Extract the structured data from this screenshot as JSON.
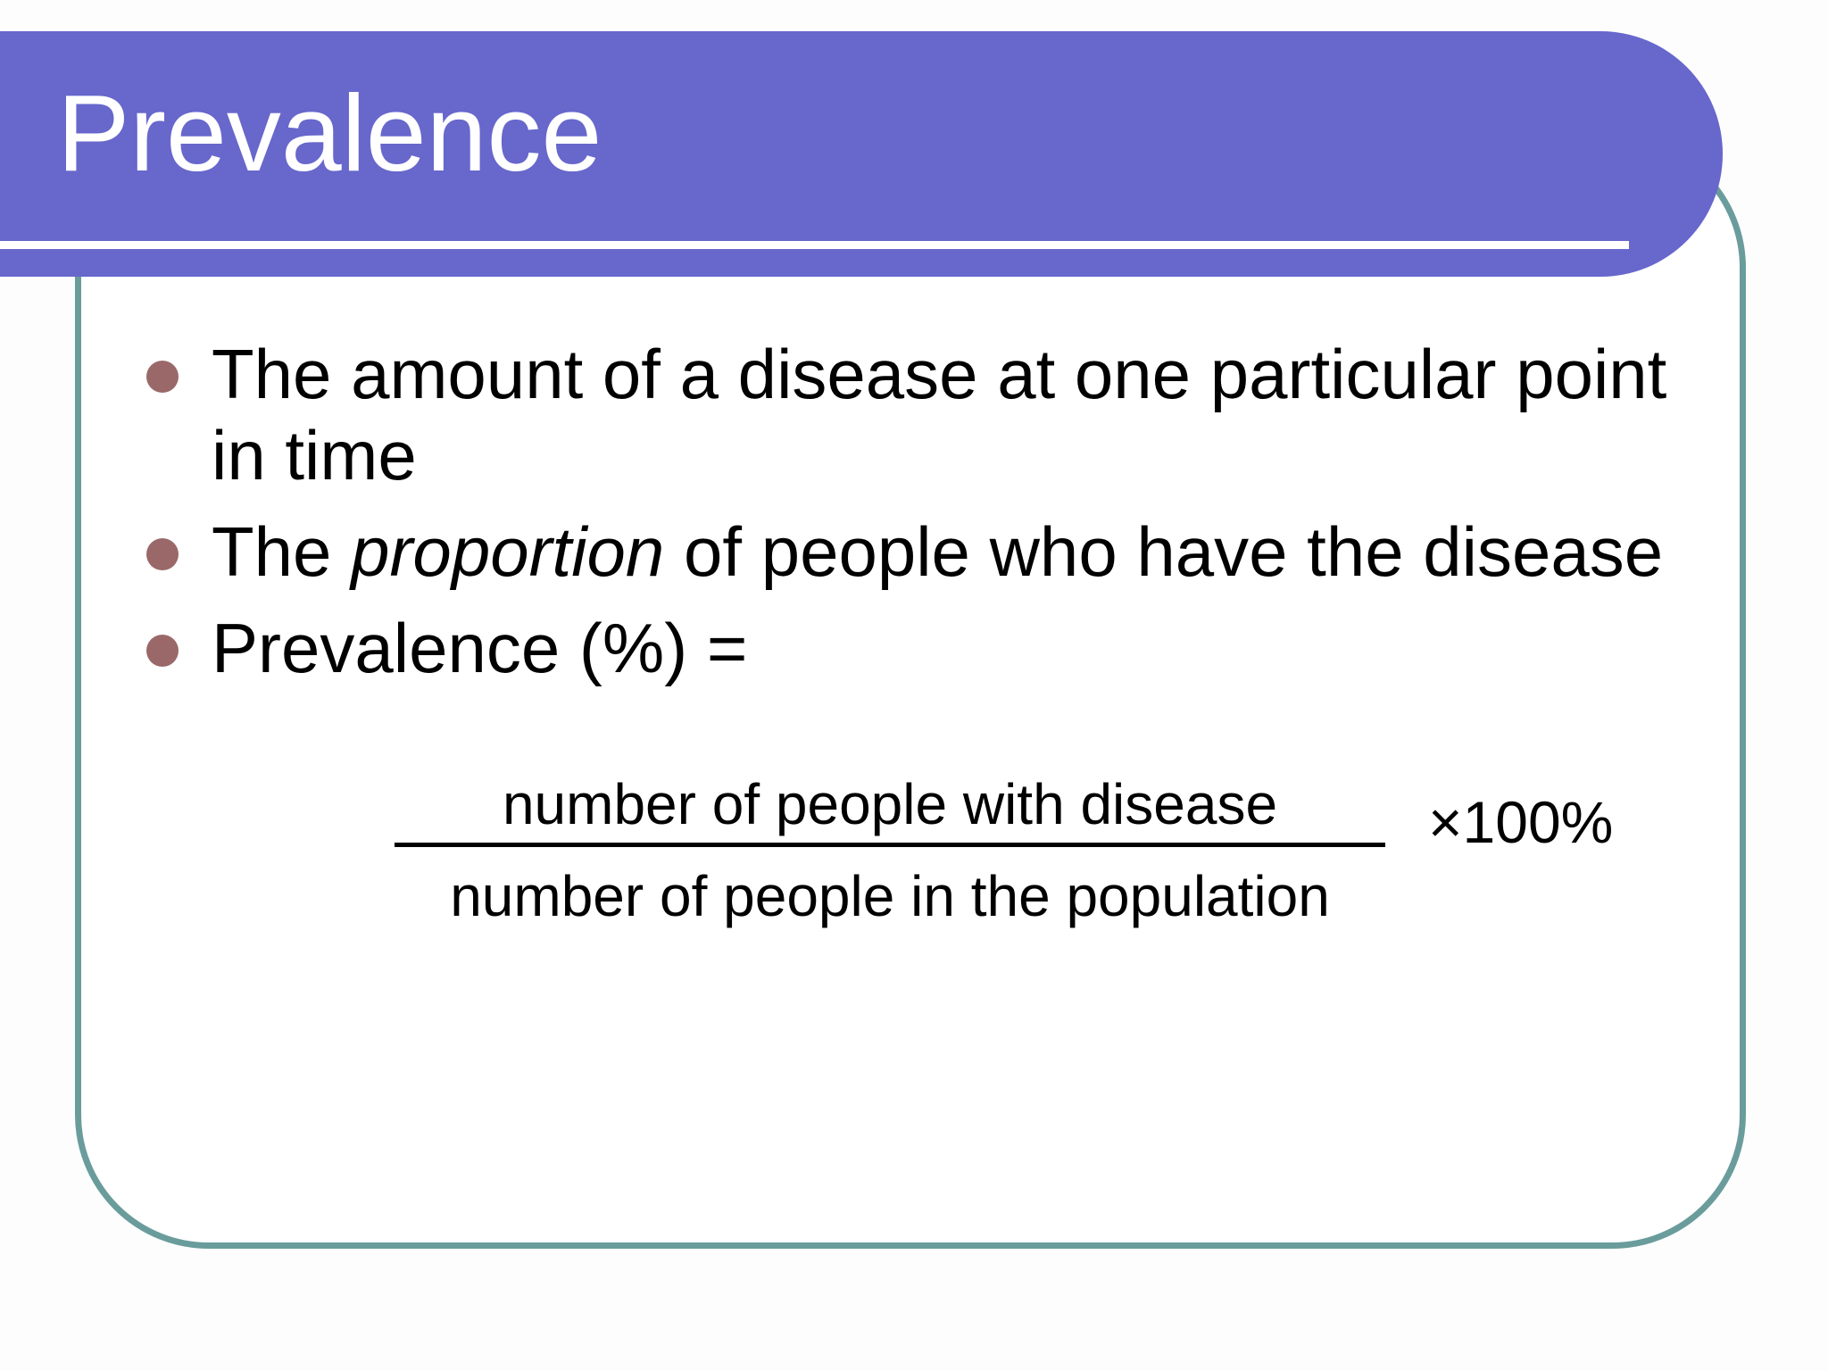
{
  "slide": {
    "title": "Prevalence",
    "bullets": [
      {
        "text": "The amount of a disease at one particular point in time"
      },
      {
        "before": "The ",
        "emphasis": "proportion",
        "after": " of people who have the disease"
      },
      {
        "text": "Prevalence (%) ="
      }
    ],
    "formula": {
      "numerator": "number of people with disease",
      "denominator": "number of people in the population",
      "multiplier": "×100%"
    }
  },
  "colors": {
    "title_bar": "#6767cc",
    "frame_border": "#6a9c9c",
    "bullet_dot": "#9a6868",
    "title_text": "#ffffff",
    "body_text": "#000000"
  }
}
